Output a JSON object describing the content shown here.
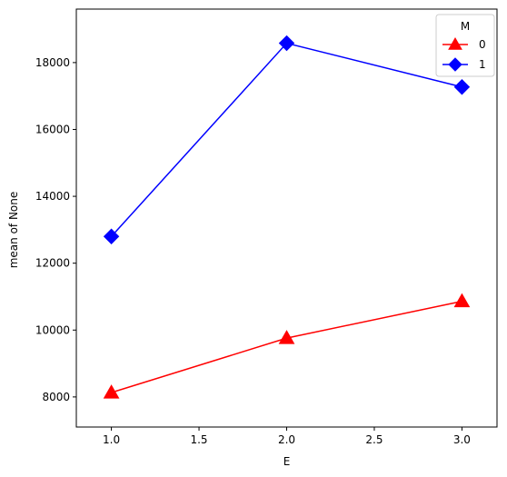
{
  "chart_data": {
    "type": "line",
    "title": "",
    "xlabel": "E",
    "ylabel": "mean of None",
    "x": [
      1.0,
      2.0,
      3.0
    ],
    "xlim": [
      0.8,
      3.2
    ],
    "ylim": [
      7100,
      19600
    ],
    "xticks": [
      1.0,
      1.5,
      2.0,
      2.5,
      3.0
    ],
    "xtick_labels": [
      "1.0",
      "1.5",
      "2.0",
      "2.5",
      "3.0"
    ],
    "yticks": [
      8000,
      10000,
      12000,
      14000,
      16000,
      18000
    ],
    "ytick_labels": [
      "8000",
      "10000",
      "12000",
      "14000",
      "16000",
      "18000"
    ],
    "grid": false,
    "legend": {
      "title": "M",
      "placement": "top-right"
    },
    "series": [
      {
        "name": "0",
        "values": [
          8130,
          9760,
          10860
        ],
        "color": "#ff0000",
        "marker": "triangle-up"
      },
      {
        "name": "1",
        "values": [
          12800,
          18580,
          17270
        ],
        "color": "#0000ff",
        "marker": "diamond"
      }
    ]
  }
}
